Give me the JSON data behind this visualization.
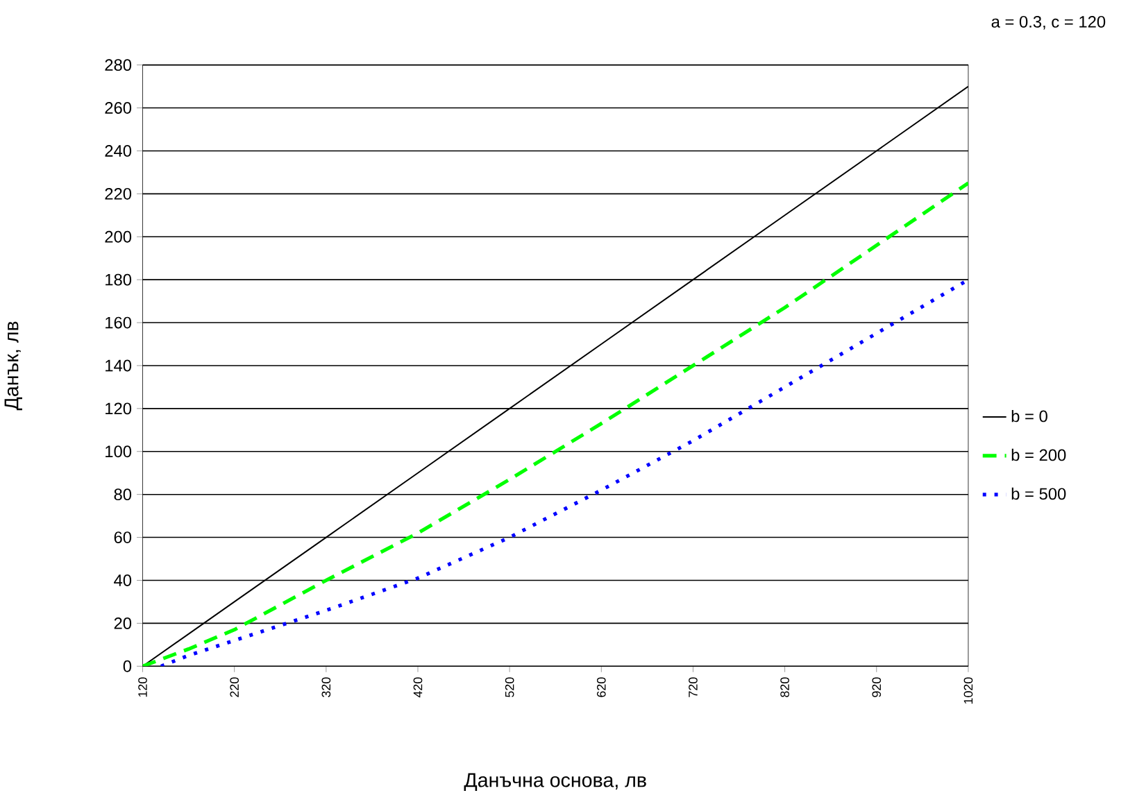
{
  "chart_data": {
    "type": "line",
    "xlabel": "Данъчна основа, лв",
    "ylabel": "Данък, лв",
    "annotations": [
      "a = 0.3, c = 120"
    ],
    "x": [
      120,
      170,
      220,
      320,
      420,
      520,
      620,
      720,
      820,
      920,
      1020
    ],
    "series": [
      {
        "name": "b = 0",
        "color": "#000000",
        "line_style": "solid",
        "values": [
          0,
          15,
          30,
          60,
          90,
          120,
          150,
          180,
          210,
          240,
          270
        ]
      },
      {
        "name": "b = 200",
        "color": "#00ff00",
        "line_style": "dashed",
        "values": [
          0,
          8,
          17,
          40,
          62,
          87,
          113,
          140,
          167,
          196,
          225
        ]
      },
      {
        "x": [
          140,
          170,
          220,
          320,
          420,
          520,
          620,
          720,
          820,
          920,
          1020
        ],
        "name": "b = 500",
        "color": "#0000ff",
        "line_style": "dotted",
        "values": [
          0,
          5,
          12,
          26,
          41,
          60,
          82,
          105,
          130,
          155,
          180
        ]
      }
    ],
    "xlim": [
      120,
      1020
    ],
    "xticks": [
      120,
      220,
      320,
      420,
      520,
      620,
      720,
      820,
      920,
      1020
    ],
    "ylim": [
      0,
      280
    ],
    "yticks": [
      0,
      20,
      40,
      60,
      80,
      100,
      120,
      140,
      160,
      180,
      200,
      220,
      240,
      260,
      280
    ],
    "grid": "y",
    "legend": "right",
    "marker": "none"
  }
}
